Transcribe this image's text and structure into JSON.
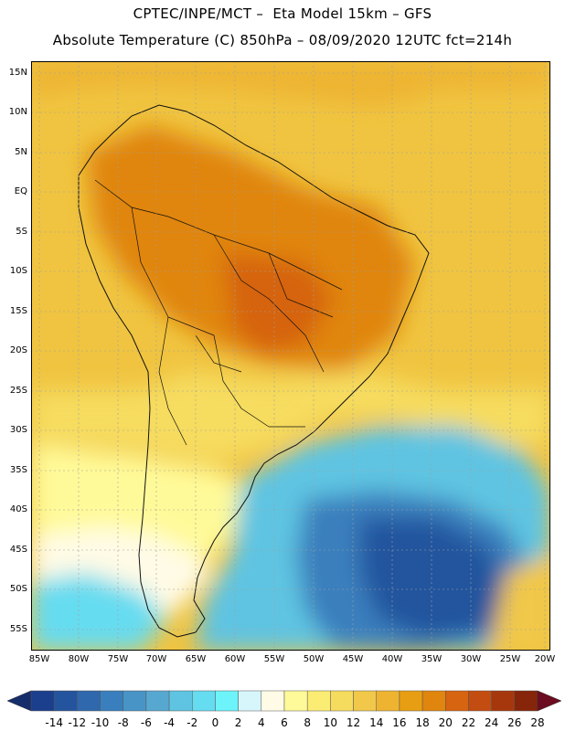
{
  "header": {
    "line1": "CPTEC/INPE/MCT –  Eta Model 15km – GFS",
    "line2": "Absolute Temperature (C) 850hPa – 08/09/2020 12UTC fct=214h"
  },
  "map": {
    "region": "South America",
    "lat_ticks": [
      "15N",
      "10N",
      "5N",
      "EQ",
      "5S",
      "10S",
      "15S",
      "20S",
      "25S",
      "30S",
      "35S",
      "40S",
      "45S",
      "50S",
      "55S"
    ],
    "lon_ticks": [
      "85W",
      "80W",
      "75W",
      "70W",
      "65W",
      "60W",
      "55W",
      "50W",
      "45W",
      "40W",
      "35W",
      "30W",
      "25W",
      "20W"
    ]
  },
  "colorbar": {
    "labels": [
      "-14",
      "-12",
      "-10",
      "-8",
      "-6",
      "-4",
      "-2",
      "0",
      "2",
      "4",
      "6",
      "8",
      "10",
      "12",
      "14",
      "16",
      "18",
      "20",
      "22",
      "24",
      "26",
      "28"
    ],
    "colors": [
      "#1b3f8c",
      "#24549e",
      "#2f68ad",
      "#3a7fbd",
      "#4894c7",
      "#57a8d1",
      "#5fc4e2",
      "#66dcf0",
      "#6cf4fa",
      "#d6f6fb",
      "#fffbe6",
      "#fffa99",
      "#fbec73",
      "#f6dc5e",
      "#f1c84a",
      "#eeb431",
      "#e89e12",
      "#e0850e",
      "#d66411",
      "#c34d10",
      "#a6370d",
      "#862509"
    ],
    "under_color": "#162d6b",
    "over_color": "#6b0c21"
  }
}
